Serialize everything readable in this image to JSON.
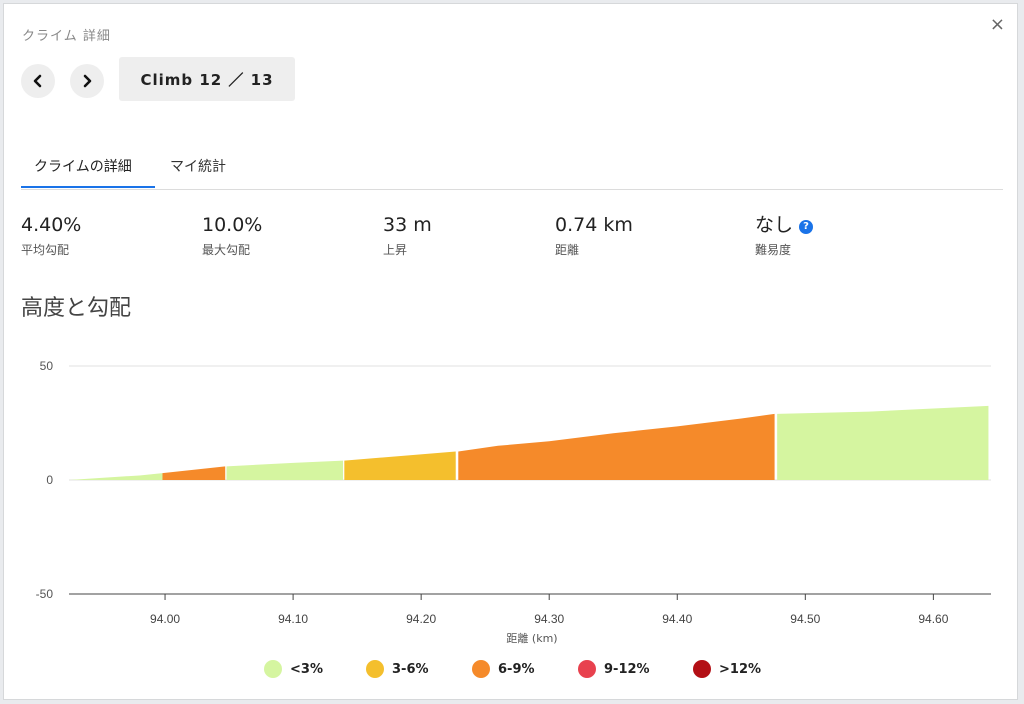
{
  "dialog": {
    "title": "クライム 詳細",
    "close_icon": "×"
  },
  "nav": {
    "climb_label": "Climb 12 ／ 13"
  },
  "tabs": [
    {
      "label": "クライムの詳細",
      "active": true
    },
    {
      "label": "マイ統計",
      "active": false
    }
  ],
  "stats": [
    {
      "value": "4.40%",
      "label": "平均勾配"
    },
    {
      "value": "10.0%",
      "label": "最大勾配"
    },
    {
      "value": "33 m",
      "label": "上昇"
    },
    {
      "value": "0.74 km",
      "label": "距離"
    },
    {
      "value": "なし",
      "label": "難易度"
    }
  ],
  "section_title": "高度と勾配",
  "chart_data": {
    "type": "area",
    "xlabel": "距離 (km)",
    "ylabel": "",
    "xlim": [
      93.925,
      94.645
    ],
    "ylim": [
      -50,
      50
    ],
    "yticks": [
      "50",
      "0",
      "-50"
    ],
    "xticks": [
      "94.00",
      "94.10",
      "94.20",
      "94.30",
      "94.40",
      "94.50",
      "94.60"
    ],
    "grid": true,
    "segments": [
      {
        "grade": "<3%",
        "points": [
          [
            93.925,
            0
          ],
          [
            93.98,
            2
          ],
          [
            93.998,
            3
          ]
        ]
      },
      {
        "grade": "6-9%",
        "points": [
          [
            93.998,
            3
          ],
          [
            94.047,
            6
          ]
        ]
      },
      {
        "grade": "<3%",
        "points": [
          [
            94.048,
            6
          ],
          [
            94.1,
            7.5
          ],
          [
            94.139,
            8.5
          ]
        ]
      },
      {
        "grade": "3-6%",
        "points": [
          [
            94.14,
            8.5
          ],
          [
            94.227,
            12.5
          ]
        ]
      },
      {
        "grade": "6-9%",
        "points": [
          [
            94.229,
            12.5
          ],
          [
            94.26,
            15
          ],
          [
            94.3,
            17
          ],
          [
            94.35,
            20.5
          ],
          [
            94.4,
            23.5
          ],
          [
            94.45,
            27
          ],
          [
            94.476,
            29
          ]
        ]
      },
      {
        "grade": "<3%",
        "points": [
          [
            94.478,
            29
          ],
          [
            94.55,
            30
          ],
          [
            94.643,
            32.5
          ]
        ]
      }
    ]
  },
  "legend": [
    {
      "label": "<3%",
      "color": "#d5f5a0"
    },
    {
      "label": "3-6%",
      "color": "#f4bf2d"
    },
    {
      "label": "6-9%",
      "color": "#f58a2a"
    },
    {
      "label": "9-12%",
      "color": "#e8414e"
    },
    {
      "label": ">12%",
      "color": "#b30f15"
    }
  ]
}
